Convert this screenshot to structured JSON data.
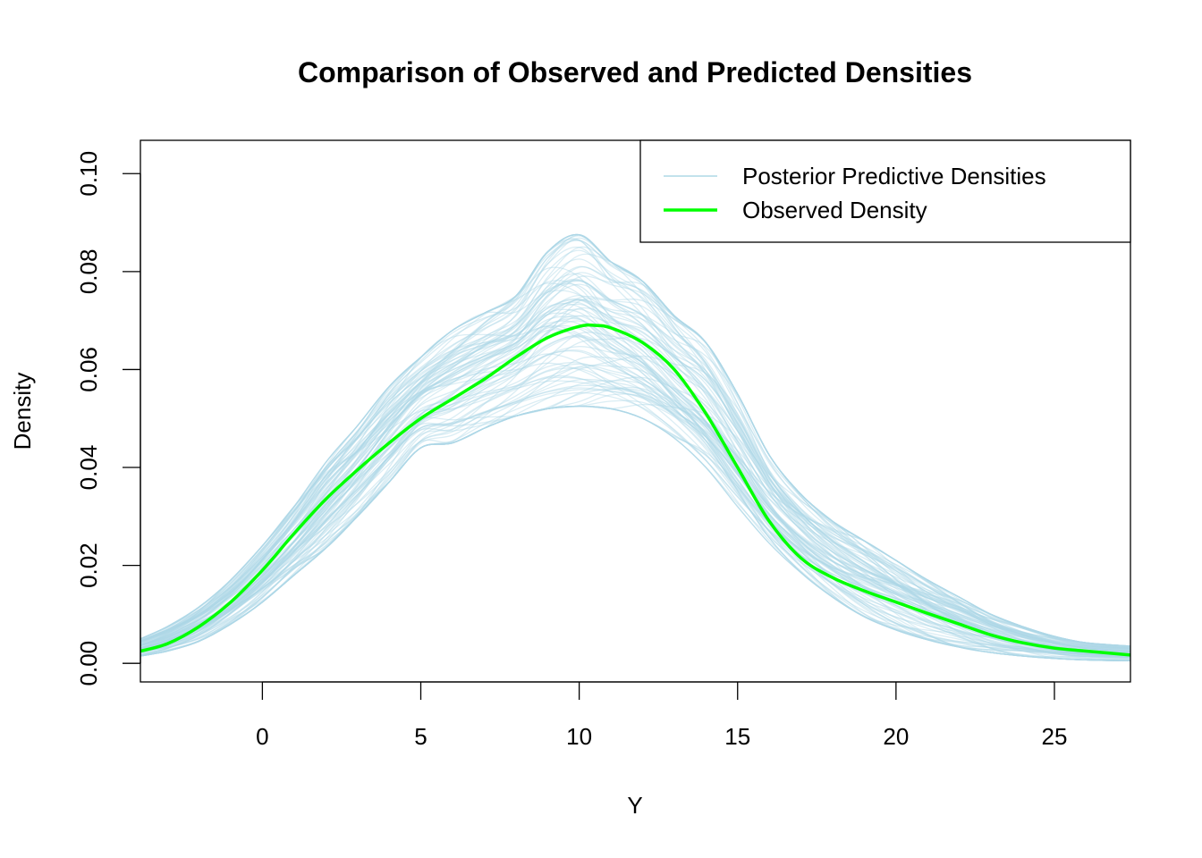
{
  "chart_data": {
    "type": "line",
    "title": "Comparison of Observed and Predicted Densities",
    "xlabel": "Y",
    "ylabel": "Density",
    "xlim": [
      -3.85,
      27.4
    ],
    "ylim": [
      -0.0038,
      0.1068
    ],
    "xticks": [
      0,
      5,
      10,
      15,
      20,
      25
    ],
    "xtick_labels": [
      "0",
      "5",
      "10",
      "15",
      "20",
      "25"
    ],
    "yticks": [
      0.0,
      0.02,
      0.04,
      0.06,
      0.08,
      0.1
    ],
    "ytick_labels": [
      "0.00",
      "0.02",
      "0.04",
      "0.06",
      "0.08",
      "0.10"
    ],
    "grid": false,
    "legend": {
      "position": "top-right",
      "entries": [
        {
          "label": "Posterior Predictive Densities",
          "color": "#add8e6"
        },
        {
          "label": "Observed Density",
          "color": "#00ff00"
        }
      ]
    },
    "series": [
      {
        "name": "Observed Density",
        "color": "#00ff00",
        "x": [
          -3.85,
          -3,
          -2,
          -1,
          0,
          1,
          2,
          3,
          4,
          5,
          6,
          7,
          8,
          9,
          10,
          10.5,
          11,
          12,
          13,
          14,
          15,
          16,
          17,
          18,
          19,
          20,
          21,
          22,
          23,
          24,
          25,
          26,
          27.4
        ],
        "y": [
          0.0025,
          0.004,
          0.0075,
          0.0125,
          0.019,
          0.0265,
          0.0335,
          0.0395,
          0.045,
          0.05,
          0.054,
          0.058,
          0.0625,
          0.0665,
          0.0688,
          0.069,
          0.0685,
          0.0655,
          0.06,
          0.051,
          0.04,
          0.029,
          0.0215,
          0.0175,
          0.0148,
          0.0125,
          0.0102,
          0.008,
          0.0058,
          0.0042,
          0.0031,
          0.0025,
          0.0017
        ]
      },
      {
        "name": "Posterior Predictive Densities",
        "color": "#add8e6",
        "opacity": 0.45,
        "draw_count": 100,
        "x": [
          -3.85,
          -3,
          -2,
          -1,
          0,
          1,
          2,
          3,
          4,
          5,
          6,
          7,
          8,
          9,
          10,
          11,
          12,
          13,
          14,
          15,
          16,
          17,
          18,
          19,
          20,
          21,
          22,
          23,
          24,
          25,
          26,
          27.4
        ],
        "y_lower": [
          0.0015,
          0.0025,
          0.0045,
          0.008,
          0.0125,
          0.018,
          0.0235,
          0.03,
          0.037,
          0.044,
          0.045,
          0.048,
          0.0505,
          0.052,
          0.0525,
          0.052,
          0.05,
          0.046,
          0.04,
          0.032,
          0.0245,
          0.0185,
          0.0135,
          0.0095,
          0.0068,
          0.0048,
          0.0033,
          0.0022,
          0.0015,
          0.001,
          0.0007,
          0.0005
        ],
        "y_upper": [
          0.005,
          0.0075,
          0.0115,
          0.017,
          0.024,
          0.032,
          0.041,
          0.0485,
          0.0565,
          0.0625,
          0.068,
          0.0715,
          0.075,
          0.084,
          0.0875,
          0.082,
          0.078,
          0.071,
          0.0655,
          0.055,
          0.0425,
          0.0345,
          0.029,
          0.025,
          0.021,
          0.017,
          0.0135,
          0.01,
          0.0075,
          0.0055,
          0.0042,
          0.0035
        ]
      }
    ]
  }
}
